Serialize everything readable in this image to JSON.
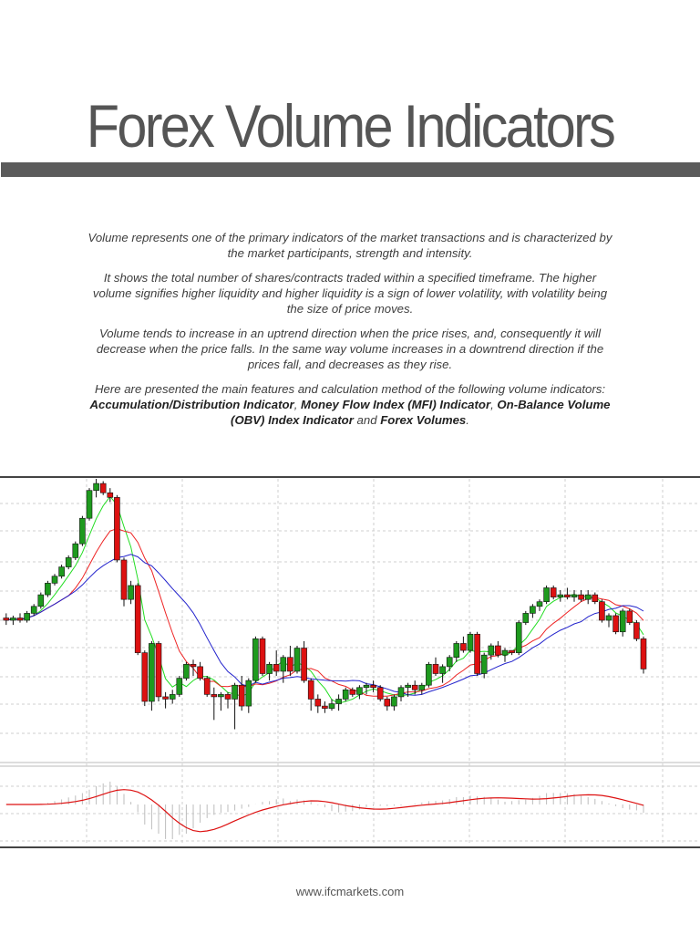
{
  "title": "Forex Volume Indicators",
  "paragraphs": [
    "Volume represents one of the primary indicators of the market transactions and is characterized by the market participants, strength and intensity.",
    "It shows the total number of shares/contracts traded within a specified timeframe. The higher volume signifies higher liquidity and higher liquidity is a sign of lower volatility, with volatility being the size of price moves.",
    "Volume tends to increase in an uptrend direction when the price rises, and, consequently it will decrease when the price falls. In the same way volume increases in a downtrend direction if the prices fall, and decreases as they rise."
  ],
  "indicators_paragraph": {
    "intro": "Here are presented the main features and calculation method of the following volume indicators: ",
    "ad": "Accumulation/Distribution Indicator",
    "sep1": ", ",
    "mfi": "Money Flow Index (MFI) Indicator",
    "sep2": ", ",
    "obv": "On-Balance Volume (OBV) Index Indicator",
    "and": " and ",
    "fv": "Forex Volumes",
    "end": "."
  },
  "footer": "www.ifcmarkets.com",
  "colors": {
    "up_candle": "#1e9a1e",
    "down_candle": "#dd1111",
    "ma_fast": "#22dd22",
    "ma_mid": "#ee2222",
    "ma_slow": "#2222cc",
    "rule": "#5b5b5b"
  },
  "chart_data": {
    "type": "candlestick",
    "candles": [
      {
        "o": 120,
        "h": 122,
        "l": 117,
        "c": 119
      },
      {
        "o": 119,
        "h": 121,
        "l": 117,
        "c": 120
      },
      {
        "o": 120,
        "h": 122,
        "l": 118,
        "c": 119
      },
      {
        "o": 119,
        "h": 123,
        "l": 118,
        "c": 122
      },
      {
        "o": 122,
        "h": 126,
        "l": 121,
        "c": 125
      },
      {
        "o": 125,
        "h": 131,
        "l": 124,
        "c": 130
      },
      {
        "o": 130,
        "h": 136,
        "l": 129,
        "c": 135
      },
      {
        "o": 135,
        "h": 139,
        "l": 134,
        "c": 138
      },
      {
        "o": 138,
        "h": 143,
        "l": 137,
        "c": 142
      },
      {
        "o": 142,
        "h": 147,
        "l": 141,
        "c": 146
      },
      {
        "o": 146,
        "h": 153,
        "l": 145,
        "c": 152
      },
      {
        "o": 152,
        "h": 164,
        "l": 151,
        "c": 163
      },
      {
        "o": 163,
        "h": 176,
        "l": 162,
        "c": 175
      },
      {
        "o": 175,
        "h": 180,
        "l": 172,
        "c": 178
      },
      {
        "o": 178,
        "h": 179,
        "l": 173,
        "c": 174
      },
      {
        "o": 174,
        "h": 176,
        "l": 170,
        "c": 172
      },
      {
        "o": 172,
        "h": 173,
        "l": 144,
        "c": 145
      },
      {
        "o": 145,
        "h": 146,
        "l": 125,
        "c": 128
      },
      {
        "o": 128,
        "h": 136,
        "l": 126,
        "c": 134
      },
      {
        "o": 134,
        "h": 135,
        "l": 104,
        "c": 105
      },
      {
        "o": 105,
        "h": 106,
        "l": 82,
        "c": 84
      },
      {
        "o": 84,
        "h": 110,
        "l": 80,
        "c": 109
      },
      {
        "o": 109,
        "h": 110,
        "l": 84,
        "c": 86
      },
      {
        "o": 86,
        "h": 88,
        "l": 81,
        "c": 85
      },
      {
        "o": 85,
        "h": 89,
        "l": 83,
        "c": 87
      },
      {
        "o": 87,
        "h": 95,
        "l": 86,
        "c": 94
      },
      {
        "o": 94,
        "h": 101,
        "l": 93,
        "c": 100
      },
      {
        "o": 100,
        "h": 102,
        "l": 95,
        "c": 99
      },
      {
        "o": 99,
        "h": 101,
        "l": 93,
        "c": 94
      },
      {
        "o": 94,
        "h": 95,
        "l": 86,
        "c": 87
      },
      {
        "o": 87,
        "h": 90,
        "l": 76,
        "c": 86
      },
      {
        "o": 86,
        "h": 88,
        "l": 80,
        "c": 87
      },
      {
        "o": 87,
        "h": 88,
        "l": 81,
        "c": 85
      },
      {
        "o": 85,
        "h": 92,
        "l": 72,
        "c": 91
      },
      {
        "o": 91,
        "h": 95,
        "l": 80,
        "c": 82
      },
      {
        "o": 82,
        "h": 94,
        "l": 79,
        "c": 93
      },
      {
        "o": 93,
        "h": 112,
        "l": 92,
        "c": 111
      },
      {
        "o": 111,
        "h": 112,
        "l": 95,
        "c": 96
      },
      {
        "o": 96,
        "h": 101,
        "l": 93,
        "c": 100
      },
      {
        "o": 100,
        "h": 106,
        "l": 95,
        "c": 97
      },
      {
        "o": 97,
        "h": 104,
        "l": 92,
        "c": 103
      },
      {
        "o": 103,
        "h": 108,
        "l": 95,
        "c": 97
      },
      {
        "o": 97,
        "h": 108,
        "l": 96,
        "c": 107
      },
      {
        "o": 107,
        "h": 110,
        "l": 92,
        "c": 93
      },
      {
        "o": 93,
        "h": 94,
        "l": 80,
        "c": 85
      },
      {
        "o": 85,
        "h": 87,
        "l": 79,
        "c": 82
      },
      {
        "o": 82,
        "h": 84,
        "l": 79,
        "c": 81
      },
      {
        "o": 81,
        "h": 85,
        "l": 80,
        "c": 83
      },
      {
        "o": 83,
        "h": 87,
        "l": 80,
        "c": 85
      },
      {
        "o": 85,
        "h": 90,
        "l": 84,
        "c": 89
      },
      {
        "o": 89,
        "h": 90,
        "l": 86,
        "c": 87
      },
      {
        "o": 87,
        "h": 91,
        "l": 85,
        "c": 90
      },
      {
        "o": 90,
        "h": 92,
        "l": 87,
        "c": 91
      },
      {
        "o": 91,
        "h": 93,
        "l": 88,
        "c": 90
      },
      {
        "o": 90,
        "h": 91,
        "l": 84,
        "c": 85
      },
      {
        "o": 85,
        "h": 86,
        "l": 80,
        "c": 82
      },
      {
        "o": 82,
        "h": 87,
        "l": 80,
        "c": 86
      },
      {
        "o": 86,
        "h": 91,
        "l": 84,
        "c": 90
      },
      {
        "o": 90,
        "h": 92,
        "l": 86,
        "c": 91
      },
      {
        "o": 91,
        "h": 93,
        "l": 87,
        "c": 89
      },
      {
        "o": 89,
        "h": 92,
        "l": 87,
        "c": 91
      },
      {
        "o": 91,
        "h": 101,
        "l": 90,
        "c": 100
      },
      {
        "o": 100,
        "h": 103,
        "l": 95,
        "c": 96
      },
      {
        "o": 96,
        "h": 100,
        "l": 92,
        "c": 99
      },
      {
        "o": 99,
        "h": 104,
        "l": 97,
        "c": 103
      },
      {
        "o": 103,
        "h": 110,
        "l": 101,
        "c": 109
      },
      {
        "o": 109,
        "h": 112,
        "l": 105,
        "c": 106
      },
      {
        "o": 106,
        "h": 114,
        "l": 105,
        "c": 113
      },
      {
        "o": 113,
        "h": 114,
        "l": 95,
        "c": 96
      },
      {
        "o": 96,
        "h": 105,
        "l": 94,
        "c": 104
      },
      {
        "o": 104,
        "h": 109,
        "l": 102,
        "c": 108
      },
      {
        "o": 108,
        "h": 110,
        "l": 103,
        "c": 104
      },
      {
        "o": 104,
        "h": 107,
        "l": 101,
        "c": 106
      },
      {
        "o": 106,
        "h": 106,
        "l": 104,
        "c": 105
      },
      {
        "o": 105,
        "h": 119,
        "l": 104,
        "c": 118
      },
      {
        "o": 118,
        "h": 123,
        "l": 117,
        "c": 122
      },
      {
        "o": 122,
        "h": 126,
        "l": 120,
        "c": 125
      },
      {
        "o": 125,
        "h": 128,
        "l": 123,
        "c": 127
      },
      {
        "o": 127,
        "h": 134,
        "l": 126,
        "c": 133
      },
      {
        "o": 133,
        "h": 134,
        "l": 128,
        "c": 129
      },
      {
        "o": 129,
        "h": 132,
        "l": 127,
        "c": 130
      },
      {
        "o": 130,
        "h": 133,
        "l": 128,
        "c": 129
      },
      {
        "o": 129,
        "h": 132,
        "l": 127,
        "c": 130
      },
      {
        "o": 130,
        "h": 132,
        "l": 127,
        "c": 128
      },
      {
        "o": 128,
        "h": 132,
        "l": 126,
        "c": 130
      },
      {
        "o": 130,
        "h": 131,
        "l": 126,
        "c": 127
      },
      {
        "o": 127,
        "h": 128,
        "l": 118,
        "c": 119
      },
      {
        "o": 119,
        "h": 122,
        "l": 116,
        "c": 121
      },
      {
        "o": 121,
        "h": 122,
        "l": 113,
        "c": 114
      },
      {
        "o": 114,
        "h": 124,
        "l": 112,
        "c": 123
      },
      {
        "o": 123,
        "h": 124,
        "l": 117,
        "c": 118
      },
      {
        "o": 118,
        "h": 119,
        "l": 110,
        "c": 111
      },
      {
        "o": 111,
        "h": 112,
        "l": 96,
        "c": 98
      }
    ]
  }
}
